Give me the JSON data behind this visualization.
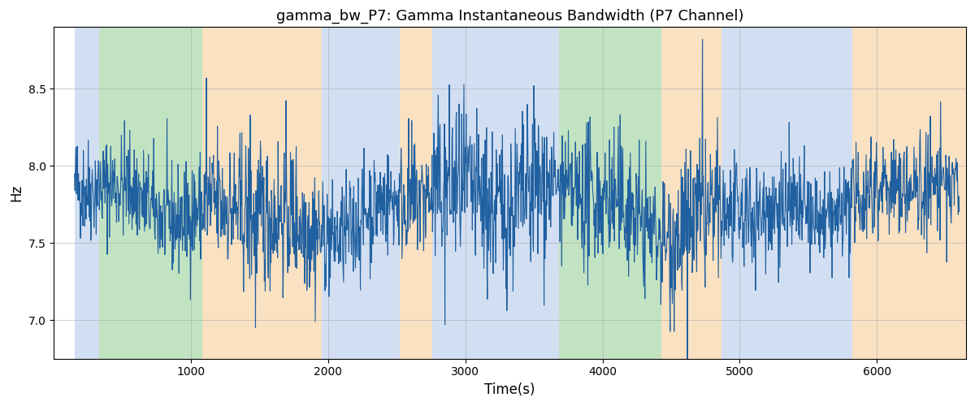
{
  "title": "gamma_bw_P7: Gamma Instantaneous Bandwidth (P7 Channel)",
  "xlabel": "Time(s)",
  "ylabel": "Hz",
  "xlim": [
    0,
    6650
  ],
  "ylim": [
    6.75,
    8.9
  ],
  "yticks": [
    7.0,
    7.5,
    8.0,
    8.5
  ],
  "xticks": [
    1000,
    2000,
    3000,
    4000,
    5000,
    6000
  ],
  "line_color": "#2060a0",
  "line_width": 0.8,
  "bg_regions": [
    {
      "xstart": 150,
      "xend": 330,
      "color": "#aec6e8",
      "alpha": 0.55
    },
    {
      "xstart": 330,
      "xend": 1080,
      "color": "#90cc90",
      "alpha": 0.55
    },
    {
      "xstart": 1080,
      "xend": 1950,
      "color": "#f5c990",
      "alpha": 0.55
    },
    {
      "xstart": 1950,
      "xend": 2520,
      "color": "#aec6e8",
      "alpha": 0.55
    },
    {
      "xstart": 2520,
      "xend": 2760,
      "color": "#f5c990",
      "alpha": 0.55
    },
    {
      "xstart": 2760,
      "xend": 3560,
      "color": "#aec6e8",
      "alpha": 0.55
    },
    {
      "xstart": 3560,
      "xend": 3680,
      "color": "#aec6e8",
      "alpha": 0.55
    },
    {
      "xstart": 3680,
      "xend": 3800,
      "color": "#90cc90",
      "alpha": 0.55
    },
    {
      "xstart": 3800,
      "xend": 4430,
      "color": "#90cc90",
      "alpha": 0.55
    },
    {
      "xstart": 4430,
      "xend": 4870,
      "color": "#f5c990",
      "alpha": 0.55
    },
    {
      "xstart": 4870,
      "xend": 5820,
      "color": "#aec6e8",
      "alpha": 0.55
    },
    {
      "xstart": 5820,
      "xend": 6650,
      "color": "#f5c990",
      "alpha": 0.55
    }
  ],
  "random_seed": 42,
  "n_points": 2000,
  "t_start": 150,
  "t_end": 6600,
  "base_mean": 7.73,
  "noise_scale": 0.17
}
